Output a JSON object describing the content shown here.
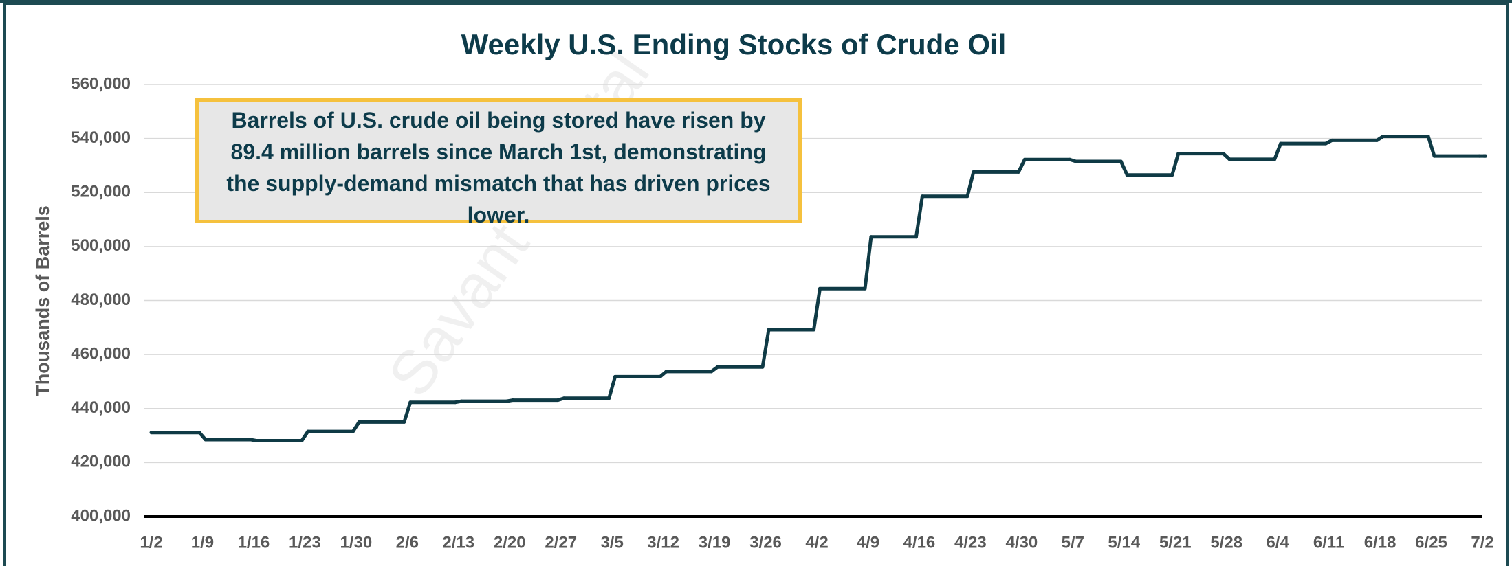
{
  "chart_data": {
    "type": "line",
    "title": "Weekly U.S. Ending Stocks of Crude Oil",
    "y_label": "Thousands of Barrels",
    "annotation": "Barrels of U.S. crude oil being stored have risen by 89.4 million barrels since March 1st, demonstrating the supply-demand mismatch that has driven prices lower.",
    "watermark": "Savant Capital",
    "categories": [
      "1/2",
      "1/9",
      "1/16",
      "1/23",
      "1/30",
      "2/6",
      "2/13",
      "2/20",
      "2/27",
      "3/5",
      "3/12",
      "3/19",
      "3/26",
      "4/2",
      "4/9",
      "4/16",
      "4/23",
      "4/30",
      "5/7",
      "5/14",
      "5/21",
      "5/28",
      "6/4",
      "6/11",
      "6/18",
      "6/25",
      "7/2"
    ],
    "series": [
      {
        "name": "U.S. Ending Stocks of Crude Oil",
        "color": "#0f3a45",
        "values": [
          431100,
          428500,
          428100,
          431500,
          435000,
          442300,
          442700,
          443100,
          443800,
          451800,
          453700,
          455400,
          469200,
          484400,
          503600,
          518600,
          527600,
          532200,
          531500,
          526500,
          534400,
          532300,
          538100,
          539300,
          540800,
          533500,
          533500
        ]
      }
    ],
    "ylim": [
      400000,
      560000
    ],
    "yticks": [
      {
        "value": 400000,
        "label": "400,000"
      },
      {
        "value": 420000,
        "label": "420,000"
      },
      {
        "value": 440000,
        "label": "440,000"
      },
      {
        "value": 460000,
        "label": "460,000"
      },
      {
        "value": 480000,
        "label": "480,000"
      },
      {
        "value": 500000,
        "label": "500,000"
      },
      {
        "value": 520000,
        "label": "520,000"
      },
      {
        "value": 540000,
        "label": "540,000"
      },
      {
        "value": 560000,
        "label": "560,000"
      }
    ],
    "grid": true
  }
}
